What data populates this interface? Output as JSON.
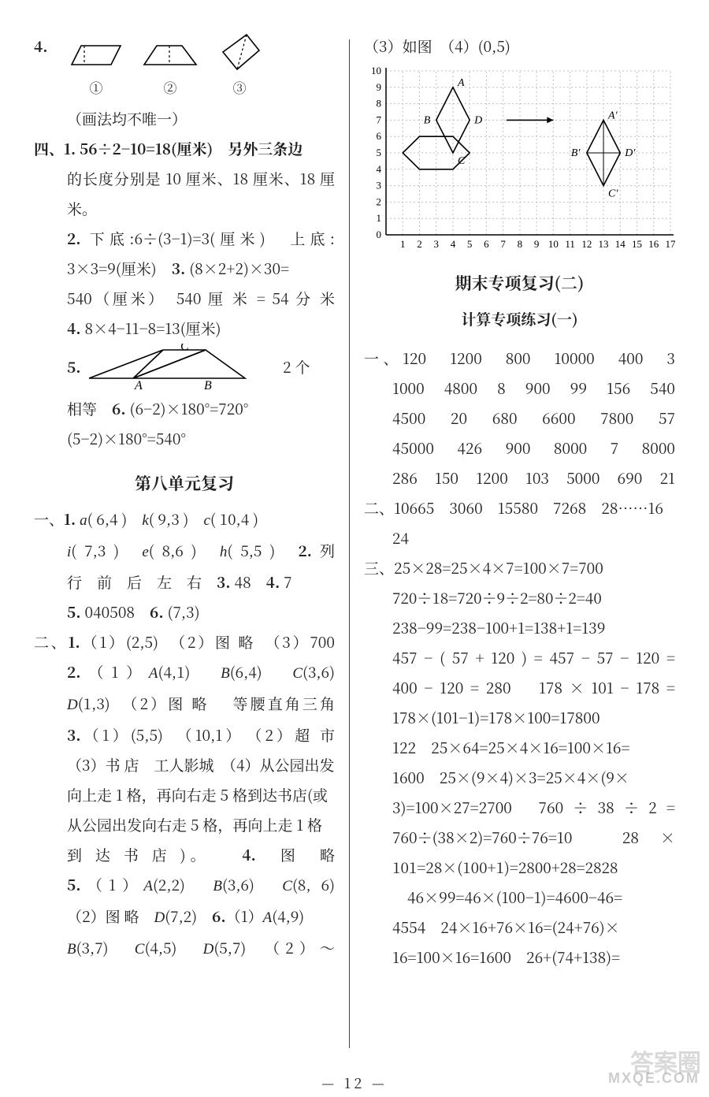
{
  "page_number": "— 12 —",
  "watermark_top": "答案圈",
  "watermark_bottom": "MXQE.COM",
  "left": {
    "q4_label": "4.",
    "q4_caption": "（画法均不唯一）",
    "q4_fig_labels": [
      "①",
      "②",
      "③"
    ],
    "sec4_label": "四、",
    "sec4_q1": "1.  56÷2−10=18(厘米)　另外三条边",
    "sec4_q1b": "的长度分别是 10 厘米、18 厘米、18 厘米。",
    "sec4_q2": "2. 下底:6÷(3−1)=3(厘米)　上底:",
    "sec4_q2b": "3×3=9(厘米)　3. (8×2+2)×30=",
    "sec4_q2c": "540（厘米）　540 厘 米 = 54 分 米",
    "sec4_q4": "4.  8×4−11−8=13(厘米)",
    "sec4_q5_label": "5.",
    "sec4_q5_count": "2 个",
    "sec4_q5_A": "A",
    "sec4_q5_B": "B",
    "sec4_q5_C": "C",
    "sec4_q6a": "相等　6. (6−2)×180°=720°",
    "sec4_q6b": "(5−2)×180°=540°",
    "unit8_title": "第八单元复习",
    "u8_s1_l1": "一、1. a( 6,4 )　k( 9,3 )　c( 10,4 )",
    "u8_s1_l2": "i( 7,3 )　e( 8,6 )　h( 5,5 )　2. 列",
    "u8_s1_l3": "行　前　后　左　右　3. 48　4. 7",
    "u8_s1_l4": "5. 040508　6. (7,3)",
    "u8_s2_l1": "二、1.（1）(2,5)　（2）图 略　（3）700",
    "u8_s2_l2": "2.（1）A(4,1)　B(6,4)　C(3,6)",
    "u8_s2_l3": "D(1,3)　（2）图 略　 等腰直角三角",
    "u8_s2_l4": "3.（1）(5,5)　（10,1）　（2）超 市",
    "u8_s2_l5": "（3）书 店　工人影城　（4）从公园出发",
    "u8_s2_l6": "向上走 1 格，再向右走 5 格到达书店(或",
    "u8_s2_l7": "从公园出发向右走 5 格，再向上走 1 格",
    "u8_s2_l8": "到 达 书 店 )。　　4.　图　略",
    "u8_s2_l9": "5.（1）A(2,2)　B(3,6)　C(8, 6)",
    "u8_s2_l10": "（2）图 略　D(7,2)　6.（1）A(4,9)",
    "u8_s2_l11": "B(3,7)　C(4,5)　D(5,7)　（2）～"
  },
  "right": {
    "top_l1": "（3）如图　（4）(0,5)",
    "graph": {
      "xlim": [
        0,
        17
      ],
      "ylim": [
        0,
        10
      ],
      "xticks": [
        1,
        2,
        3,
        4,
        5,
        6,
        7,
        8,
        9,
        10,
        11,
        12,
        13,
        14,
        15,
        16,
        17
      ],
      "yticks": [
        0,
        1,
        2,
        3,
        4,
        5,
        6,
        7,
        8,
        9,
        10
      ],
      "grid_color": "#bfbfbf",
      "grid_dash": "2,3",
      "axis_color": "#000000",
      "shape_stroke": "#000000",
      "label_fontsize": 13,
      "labels": {
        "A": "A",
        "B": "B",
        "C": "C",
        "D": "D",
        "Ap": "A′",
        "Bp": "B′",
        "Cp": "C′",
        "Dp": "D′"
      },
      "shape1": {
        "points": [
          [
            1,
            5
          ],
          [
            2,
            6
          ],
          [
            4,
            6
          ],
          [
            5,
            5
          ],
          [
            4,
            4
          ],
          [
            2,
            4
          ]
        ]
      },
      "shapeA": {
        "points": [
          [
            4,
            9
          ],
          [
            3,
            7
          ],
          [
            4,
            5
          ],
          [
            5,
            7
          ]
        ]
      },
      "shapeA_prime": {
        "points": [
          [
            13,
            7
          ],
          [
            12,
            5
          ],
          [
            13,
            3
          ],
          [
            14,
            5
          ]
        ]
      },
      "B_pt": [
        3,
        7
      ],
      "D_pt": [
        5,
        7
      ],
      "C_pt": [
        4,
        5
      ],
      "Bp_pt": [
        12,
        5
      ],
      "Dp_pt": [
        14,
        5
      ],
      "Cp_pt": [
        13,
        3
      ],
      "arrow_from": [
        7.2,
        7
      ],
      "arrow_to": [
        10,
        7
      ]
    },
    "final_title": "期末专项复习(二)",
    "final_subtitle": "计算专项练习(一)",
    "s1_lines": [
      "一、120　1200　800　10000　400　3",
      "1000　4800　8　900　99　156　540",
      "4500　20　680　6600　7800　57",
      "45000　426　900　8000　7　8000",
      "286　150　1200　103　5000　690　21"
    ],
    "s2_lines": [
      "二、10665　3060　15580　7268　28……16",
      "24"
    ],
    "s3_lines": [
      "三、25×28=25×4×7=100×7=700",
      "720÷18=720÷9÷2=80÷2=40",
      "238−99=238−100+1=138+1=139",
      "457 − ( 57 + 120 ) = 457 − 57 − 120 =",
      "400 − 120 = 280　 178 × 101 − 178 =",
      "178×(101−1)=178×100=17800",
      "122　25×64=25×4×16=100×16=",
      "1600　25×(9×4)×3=25×4×(9×",
      "3)=100×27=2700　760 ÷ 38 ÷ 2 =",
      "760÷(38×2)=760÷76=10　28 ×",
      "101=28×(100+1)=2800+28=2828",
      "　46×99=46×(100−1)=4600−46=",
      "4554　24×16+76×16=(24+76)×",
      "16=100×16=1600　26+(74+138)="
    ]
  }
}
